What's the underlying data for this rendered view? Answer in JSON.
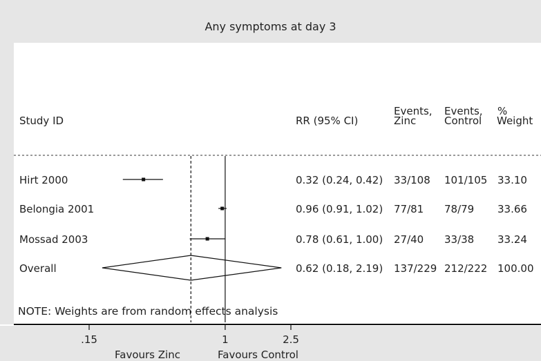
{
  "title": "Any symptoms at day 3",
  "headers": {
    "study_id": "Study ID",
    "rr": "RR (95% CI)",
    "ev_zinc_1": "Events,",
    "ev_zinc_2": "Zinc",
    "ev_ctrl_1": "Events,",
    "ev_ctrl_2": "Control",
    "weight_1": "%",
    "weight_2": "Weight"
  },
  "note": "NOTE: Weights are from random effects analysis",
  "axis": {
    "ticks": [
      {
        "value": 0.15,
        "label": ".15"
      },
      {
        "value": 1,
        "label": "1"
      },
      {
        "value": 2.5,
        "label": "2.5"
      }
    ],
    "favours_left": "Favours Zinc",
    "favours_right": "Favours Control"
  },
  "chart_data": {
    "type": "forest",
    "title": "Any symptoms at day 3",
    "x_scale": "log",
    "xlim": [
      0.15,
      2.5
    ],
    "null_line": 1,
    "overall_line": 0.62,
    "studies": [
      {
        "name": "Hirt 2000",
        "rr": 0.32,
        "lo": 0.24,
        "hi": 0.42,
        "rr_text": "0.32 (0.24, 0.42)",
        "events_zinc": "33/108",
        "events_control": "101/105",
        "weight": "33.10"
      },
      {
        "name": "Belongia 2001",
        "rr": 0.96,
        "lo": 0.91,
        "hi": 1.02,
        "rr_text": "0.96 (0.91, 1.02)",
        "events_zinc": "77/81",
        "events_control": "78/79",
        "weight": "33.66"
      },
      {
        "name": "Mossad 2003",
        "rr": 0.78,
        "lo": 0.61,
        "hi": 1.0,
        "rr_text": "0.78 (0.61, 1.00)",
        "events_zinc": "27/40",
        "events_control": "33/38",
        "weight": "33.24"
      }
    ],
    "overall": {
      "name": "Overall",
      "rr": 0.62,
      "lo": 0.18,
      "hi": 2.19,
      "rr_text": "0.62 (0.18, 2.19)",
      "events_zinc": "137/229",
      "events_control": "212/222",
      "weight": "100.00"
    }
  }
}
